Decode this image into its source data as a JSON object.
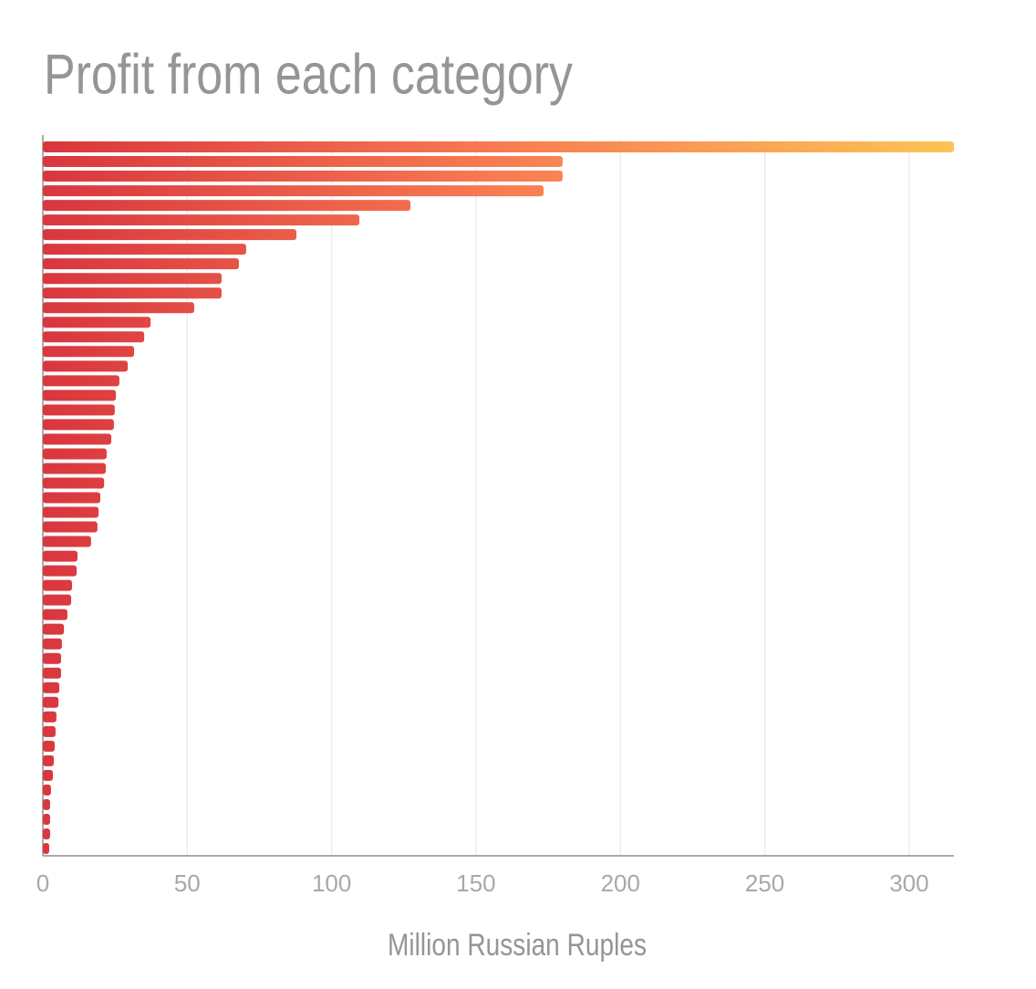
{
  "chart_data": {
    "type": "bar",
    "orientation": "horizontal",
    "title": "Profit from each category",
    "xlabel": "Million Russian Ruples",
    "categories": [
      null,
      null,
      null,
      null,
      null,
      null,
      null,
      null,
      null,
      null,
      null,
      null,
      null,
      null,
      null,
      null,
      null,
      null,
      null,
      null,
      null,
      null,
      null,
      null,
      null,
      null,
      null,
      null,
      null,
      null,
      null,
      null,
      null,
      null,
      null,
      null,
      null,
      null,
      null,
      null,
      null,
      null,
      null,
      null,
      null,
      null,
      null,
      null,
      null
    ],
    "values": [
      315.5,
      180,
      180,
      173.4,
      127.3,
      109.6,
      87.8,
      70.4,
      67.9,
      61.9,
      61.9,
      52.4,
      37.3,
      35.1,
      31.6,
      29.4,
      26.5,
      25.3,
      24.9,
      24.6,
      23.7,
      22.1,
      21.8,
      21.2,
      19.9,
      19.3,
      18.9,
      16.7,
      12,
      11.7,
      10.1,
      9.8,
      8.5,
      7.3,
      6.6,
      6.3,
      6.3,
      5.7,
      5.4,
      4.7,
      4.4,
      4.1,
      3.8,
      3.5,
      2.8,
      2.5,
      2.5,
      2.5,
      2.2
    ],
    "color_scale": [
      "#d9363e",
      "#f87b52",
      "#fcc455"
    ],
    "xlim": [
      0,
      315.5
    ],
    "xticks": [
      0,
      50,
      100,
      150,
      200,
      250,
      300
    ],
    "grid": true
  }
}
